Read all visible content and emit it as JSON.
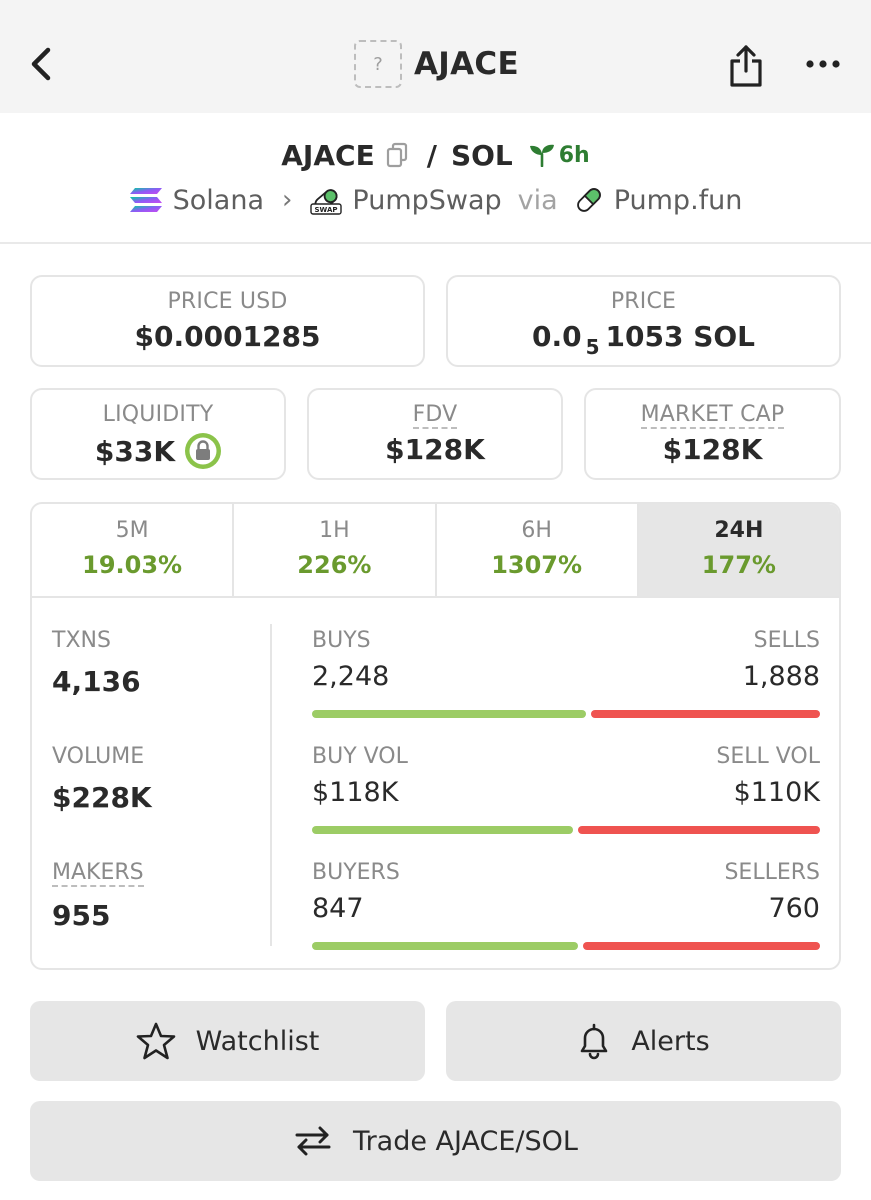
{
  "header": {
    "title": "AJACE",
    "token_placeholder": "?",
    "icons": {
      "back": "chevron-left-icon",
      "share": "share-icon",
      "more": "more-horizontal-icon"
    }
  },
  "pair": {
    "base": "AJACE",
    "separator": "/",
    "quote": "SOL",
    "age": "6h",
    "chain": "Solana",
    "dex": "PumpSwap",
    "via_label": "via",
    "launchpad": "Pump.fun"
  },
  "stats": {
    "price_usd": {
      "label": "PRICE USD",
      "value": "$0.0001285"
    },
    "price_native": {
      "label": "PRICE",
      "prefix": "0.0",
      "subscript": "5",
      "suffix": "1053 SOL"
    },
    "liquidity": {
      "label": "LIQUIDITY",
      "value": "$33K"
    },
    "fdv": {
      "label": "FDV",
      "value": "$128K"
    },
    "market_cap": {
      "label": "MARKET CAP",
      "value": "$128K"
    }
  },
  "timeframes": [
    {
      "label": "5M",
      "change": "19.03%",
      "active": false
    },
    {
      "label": "1H",
      "change": "226%",
      "active": false
    },
    {
      "label": "6H",
      "change": "1307%",
      "active": false
    },
    {
      "label": "24H",
      "change": "177%",
      "active": true
    }
  ],
  "activity": {
    "txns": {
      "label": "TXNS",
      "value": "4,136"
    },
    "volume": {
      "label": "VOLUME",
      "value": "$228K"
    },
    "makers": {
      "label": "MAKERS",
      "value": "955"
    },
    "buys": {
      "left_label": "BUYS",
      "left_value": "2,248",
      "right_label": "SELLS",
      "right_value": "1,888",
      "buy_fraction": 0.5435
    },
    "vol_split": {
      "left_label": "BUY VOL",
      "left_value": "$118K",
      "right_label": "SELL VOL",
      "right_value": "$110K",
      "buy_fraction": 0.5175
    },
    "makers_split": {
      "left_label": "BUYERS",
      "left_value": "847",
      "right_label": "SELLERS",
      "right_value": "760",
      "buy_fraction": 0.527
    }
  },
  "actions": {
    "watchlist": "Watchlist",
    "alerts": "Alerts",
    "trade": "Trade AJACE/SOL"
  },
  "colors": {
    "positive": "#6a9a2e",
    "buy_bar": "#9ccc65",
    "sell_bar": "#ef5350",
    "age_green": "#2e7d32"
  }
}
